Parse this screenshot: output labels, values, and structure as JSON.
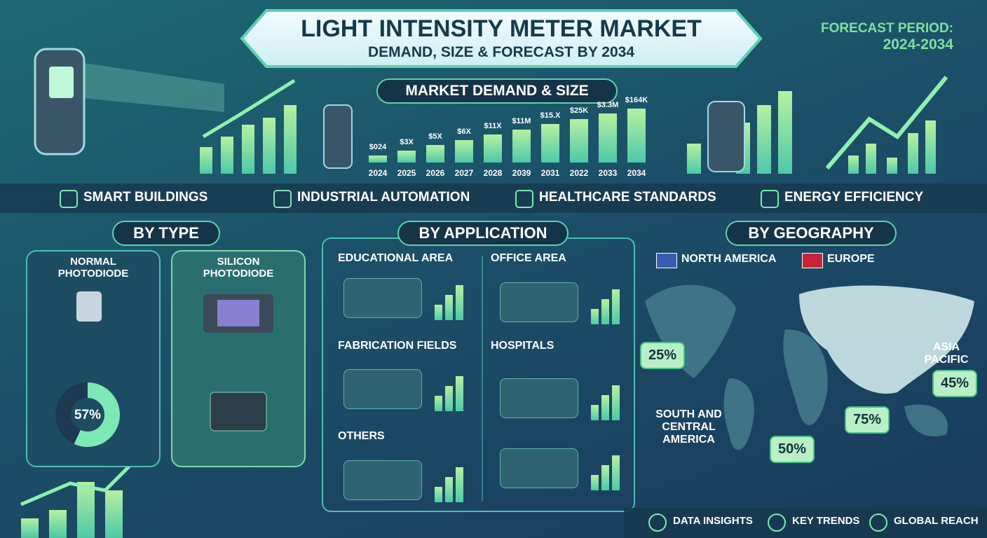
{
  "header": {
    "title": "LIGHT INTENSITY METER MARKET",
    "subtitle": "DEMAND, SIZE & FORECAST BY 2034",
    "forecast_label": "FORECAST PERIOD:",
    "forecast_period": "2024-2034"
  },
  "market": {
    "title": "MARKET DEMAND & SIZE",
    "bars": [
      {
        "label": "$024",
        "year": "2024"
      },
      {
        "label": "$3X",
        "year": "2025"
      },
      {
        "label": "$5X",
        "year": "2026"
      },
      {
        "label": "$6X",
        "year": "2027"
      },
      {
        "label": "$11X",
        "year": "2028"
      },
      {
        "label": "$11M",
        "year": "2039"
      },
      {
        "label": "$15.X",
        "year": "2031"
      },
      {
        "label": "$25K",
        "year": "2022"
      },
      {
        "label": "$3.3M",
        "year": "2033"
      },
      {
        "label": "$164K",
        "year": "2034"
      }
    ]
  },
  "sectors": [
    "SMART BUILDINGS",
    "INDUSTRIAL AUTOMATION",
    "HEALTHCARE STANDARDS",
    "ENERGY EFFICIENCY"
  ],
  "by_type": {
    "title": "BY TYPE",
    "items": [
      "NORMAL PHOTODIODE",
      "SILICON PHOTODIODE"
    ],
    "share": "57%"
  },
  "by_application": {
    "title": "BY APPLICATION",
    "items": [
      "EDUCATIONAL AREA",
      "OFFICE AREA",
      "FABRICATION FIELDS",
      "HOSPITALS",
      "OTHERS"
    ]
  },
  "by_geography": {
    "title": "BY GEOGRAPHY",
    "regions": [
      {
        "name": "NORTH AMERICA",
        "share": "25%"
      },
      {
        "name": "EUROPE"
      },
      {
        "name": "ASIA PACIFIC",
        "share": "45%"
      },
      {
        "name": "SOUTH AND CENTRAL AMERICA",
        "share": "50%"
      }
    ],
    "other_share": "75%"
  },
  "footer": [
    "DATA INSIGHTS",
    "KEY TRENDS",
    "GLOBAL REACH"
  ]
}
